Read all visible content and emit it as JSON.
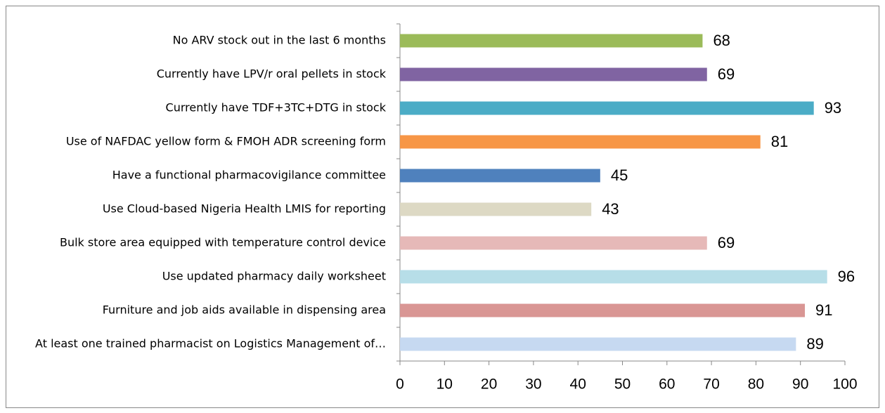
{
  "chart_data": {
    "type": "bar",
    "orientation": "horizontal",
    "categories": [
      "No ARV stock out in the last 6 months",
      "Currently have LPV/r oral pellets in stock",
      "Currently have TDF+3TC+DTG in stock",
      "Use of NAFDAC yellow form & FMOH ADR screening form",
      "Have a functional pharmacovigilance committee",
      "Use Cloud-based Nigeria Health LMIS for reporting",
      "Bulk store area equipped with temperature control device",
      "Use updated pharmacy daily worksheet",
      "Furniture and job aids available in dispensing area",
      "At least one trained pharmacist on Logistics Management of…"
    ],
    "values": [
      68,
      69,
      93,
      81,
      45,
      43,
      69,
      96,
      91,
      89
    ],
    "colors": [
      "#9bbb59",
      "#8064a2",
      "#4bacc6",
      "#f79646",
      "#4f81bd",
      "#ddd9c4",
      "#e6b9b8",
      "#b7dee8",
      "#d99694",
      "#c6d9f1"
    ],
    "xlim": [
      0,
      100
    ],
    "xticks": [
      0,
      10,
      20,
      30,
      40,
      50,
      60,
      70,
      80,
      90,
      100
    ]
  }
}
